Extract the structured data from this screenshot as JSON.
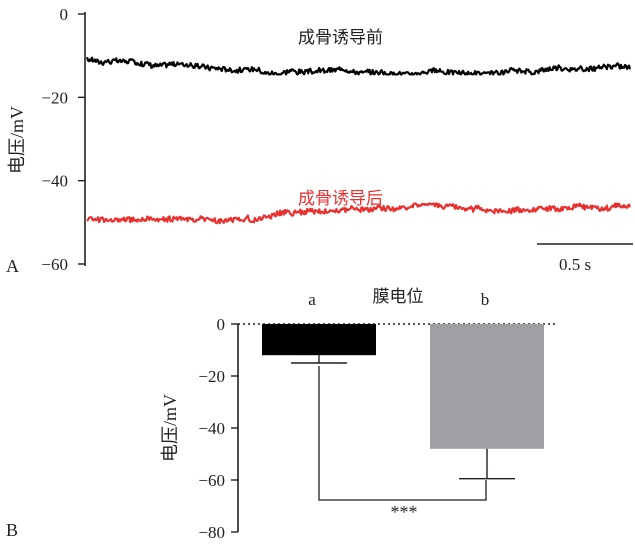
{
  "chart_data": [
    {
      "panel": "A",
      "type": "line",
      "ylabel": "电压/mV",
      "ylim": [
        -60,
        0
      ],
      "yticks": [
        0,
        -20,
        -40,
        -60
      ],
      "scale_bar": {
        "label": "0.5 s",
        "seconds": 0.5
      },
      "series": [
        {
          "name": "成骨诱导前",
          "color": "#000000",
          "mean": -11,
          "min": -14.5,
          "max": -8.5
        },
        {
          "name": "成骨诱导后",
          "color": "#e8312f",
          "mean": -49,
          "min": -51.5,
          "max": -45.5
        }
      ]
    },
    {
      "panel": "B",
      "type": "bar",
      "title": "膜电位",
      "ylabel": "电压/mV",
      "ylim": [
        -80,
        0
      ],
      "yticks": [
        0,
        -20,
        -40,
        -60,
        -80
      ],
      "categories": [
        "a",
        "b"
      ],
      "values": [
        -12,
        -48
      ],
      "errors": [
        3,
        11.5
      ],
      "colors": [
        "#000000",
        "#9d9fa2"
      ],
      "significance": "***"
    }
  ]
}
